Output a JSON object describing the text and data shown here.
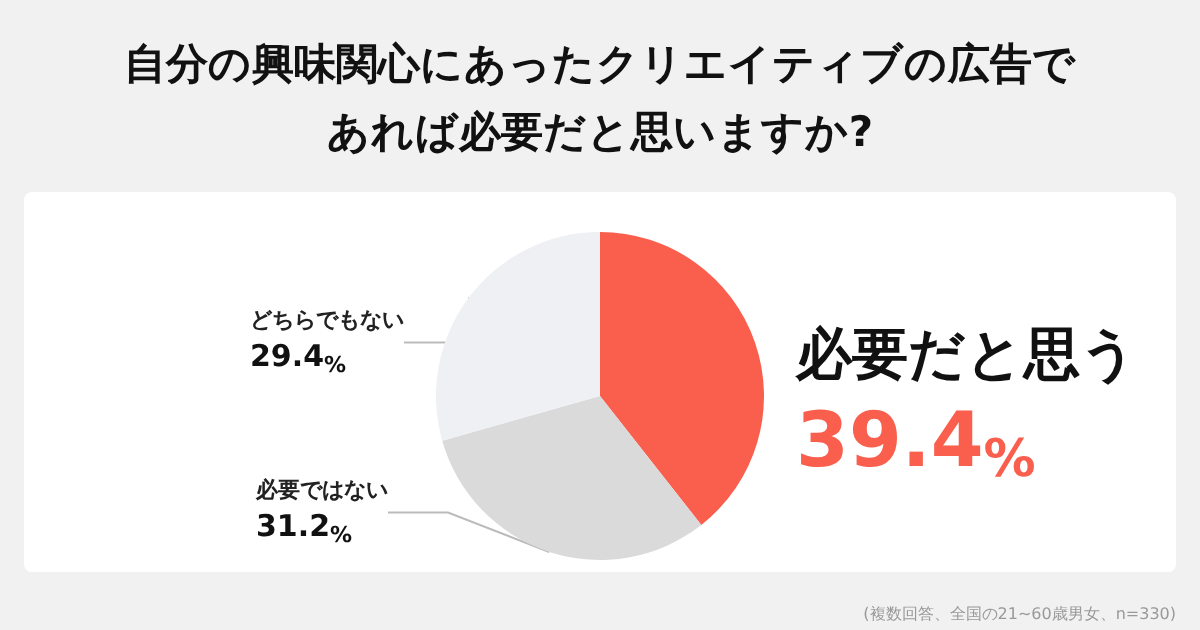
{
  "chart_data": {
    "type": "pie",
    "title": "自分の興味関心にあったクリエイティブの広告であれば必要だと思いますか?",
    "categories": [
      "必要だと思う",
      "必要ではない",
      "どちらでもない"
    ],
    "values": [
      39.4,
      31.2,
      29.4
    ],
    "value_labels": [
      "39.4%",
      "31.2%",
      "29.4%"
    ],
    "colors": [
      "#fa5f4e",
      "#dadada",
      "#eff0f3"
    ],
    "annotations": [
      "(複数回答、全国の21~60歳男女、n=330)"
    ],
    "legend": false
  }
}
